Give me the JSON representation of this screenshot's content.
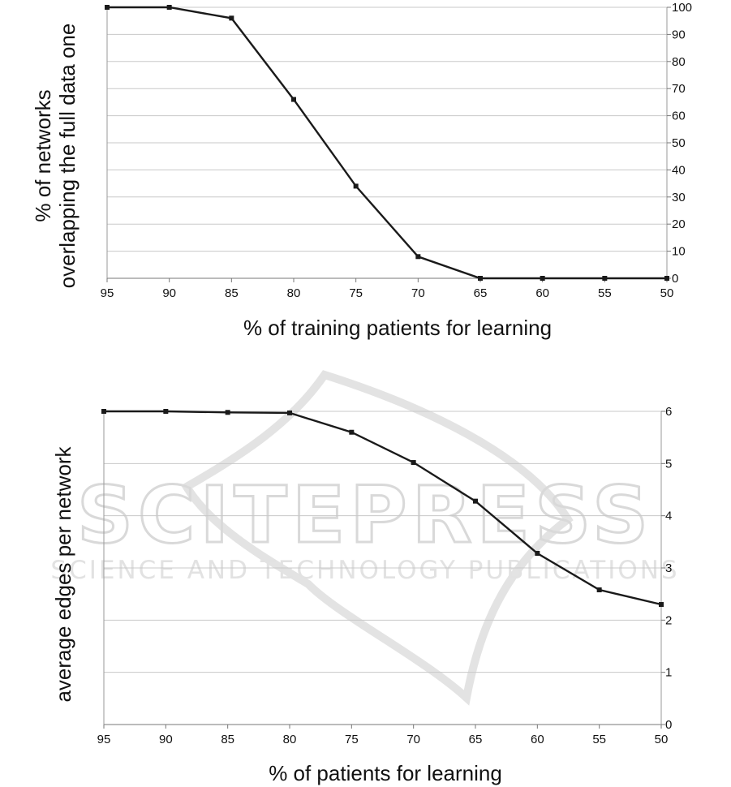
{
  "watermark": {
    "title": "SCITEPRESS",
    "subtitle": "SCIENCE AND TECHNOLOGY PUBLICATIONS"
  },
  "chart_data": [
    {
      "type": "line",
      "x": [
        95,
        90,
        85,
        80,
        75,
        70,
        65,
        60,
        55,
        50
      ],
      "values": [
        100,
        100,
        96,
        66,
        34,
        8,
        0,
        0,
        0,
        0
      ],
      "ylim": [
        0,
        100
      ],
      "yticks": [
        0,
        10,
        20,
        30,
        40,
        50,
        60,
        70,
        80,
        90,
        100
      ],
      "xticks": [
        95,
        90,
        85,
        80,
        75,
        70,
        65,
        60,
        55,
        50
      ],
      "x_reversed": true,
      "y_axis_side": "right",
      "grid": "horizontal",
      "xlabel": "% of training patients for learning",
      "ylabel_lines": [
        "% of networks",
        "overlapping the full data one"
      ],
      "line_color": "#1a1a1a",
      "grid_color": "#c8c8c8"
    },
    {
      "type": "line",
      "x": [
        95,
        90,
        85,
        80,
        75,
        70,
        65,
        60,
        55,
        50
      ],
      "values": [
        6.0,
        6.0,
        5.98,
        5.97,
        5.6,
        5.02,
        4.28,
        3.28,
        2.58,
        2.3
      ],
      "ylim": [
        0,
        6
      ],
      "yticks": [
        0,
        1,
        2,
        3,
        4,
        5,
        6
      ],
      "xticks": [
        95,
        90,
        85,
        80,
        75,
        70,
        65,
        60,
        55,
        50
      ],
      "x_reversed": true,
      "y_axis_side": "right",
      "grid": "horizontal",
      "xlabel": "% of patients for learning",
      "ylabel_lines": [
        "average edges per network"
      ],
      "line_color": "#1a1a1a",
      "grid_color": "#c8c8c8"
    }
  ]
}
